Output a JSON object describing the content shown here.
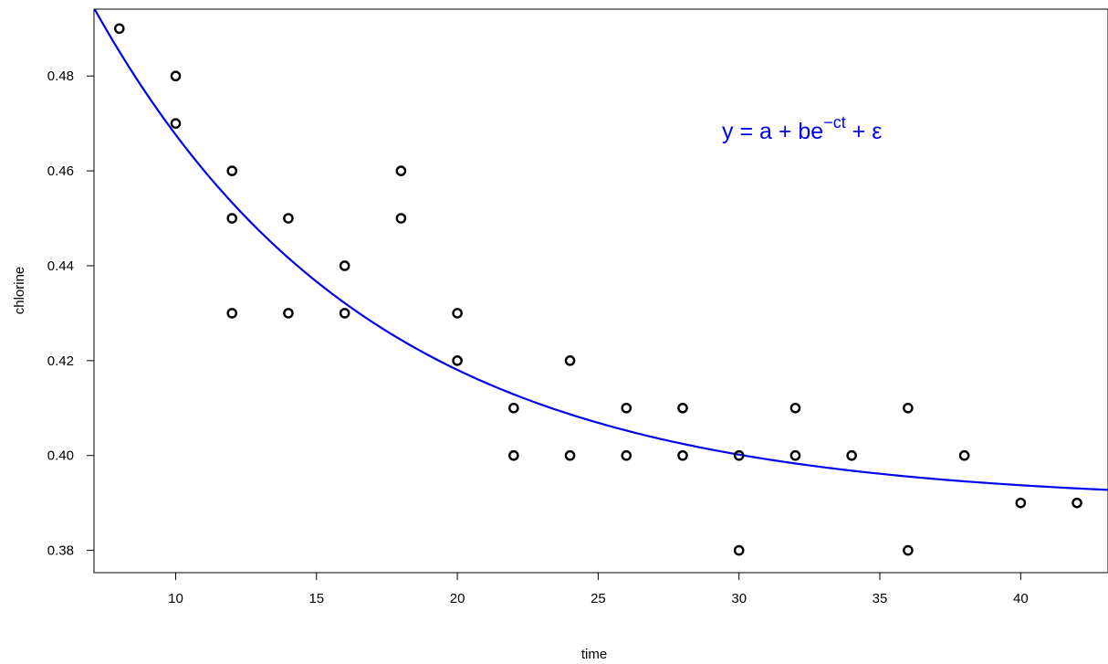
{
  "chart_data": {
    "type": "scatter",
    "title": "",
    "xlabel": "time",
    "ylabel": "chlorine",
    "xlim": [
      7.1,
      43.1
    ],
    "ylim": [
      0.3753,
      0.4941
    ],
    "x_ticks": [
      10,
      15,
      20,
      25,
      30,
      35,
      40
    ],
    "y_ticks": [
      0.38,
      0.4,
      0.42,
      0.44,
      0.46,
      0.48
    ],
    "x_tick_labels": [
      "10",
      "15",
      "20",
      "25",
      "30",
      "35",
      "40"
    ],
    "y_tick_labels": [
      "0.38",
      "0.40",
      "0.42",
      "0.44",
      "0.46",
      "0.48"
    ],
    "grid": false,
    "points": {
      "x": [
        8,
        10,
        10,
        12,
        12,
        12,
        14,
        14,
        16,
        16,
        18,
        18,
        20,
        20,
        22,
        22,
        24,
        24,
        26,
        26,
        28,
        28,
        30,
        30,
        32,
        32,
        34,
        36,
        36,
        38,
        40,
        42
      ],
      "y": [
        0.49,
        0.48,
        0.47,
        0.46,
        0.45,
        0.43,
        0.45,
        0.43,
        0.44,
        0.43,
        0.46,
        0.45,
        0.43,
        0.42,
        0.41,
        0.4,
        0.42,
        0.4,
        0.41,
        0.4,
        0.41,
        0.4,
        0.4,
        0.38,
        0.41,
        0.4,
        0.4,
        0.41,
        0.38,
        0.4,
        0.39,
        0.39
      ],
      "color": "#000000",
      "marker": "open-circle"
    },
    "fit_curve": {
      "formula": "a + b*exp(-c*t)",
      "a": 0.3901,
      "b": 0.215,
      "c": 0.102,
      "color": "#0000ee"
    },
    "annotation": {
      "prefix": "y = a + be",
      "superscript": "−ct",
      "suffix": " + ε",
      "color": "#0000ee"
    }
  }
}
